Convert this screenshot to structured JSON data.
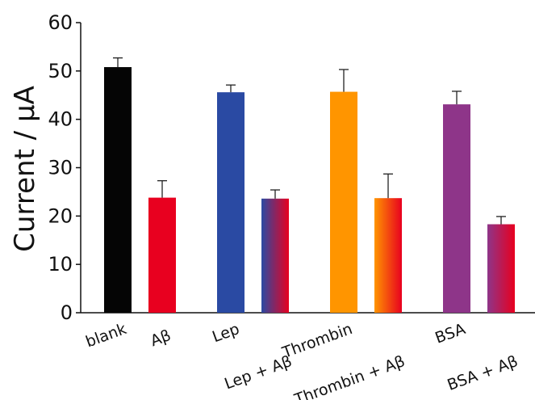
{
  "chart_data": {
    "type": "bar",
    "title": "",
    "xlabel": "",
    "ylabel": "Current / μA",
    "ylim": [
      0,
      60
    ],
    "yticks": [
      0,
      10,
      20,
      30,
      40,
      50,
      60
    ],
    "grid": false,
    "legend": "none",
    "categories": [
      "blank",
      "Aβ",
      "Lep",
      "Lep + Aβ",
      "Thrombin",
      "Thrombin  + Aβ",
      "BSA",
      "BSA + Aβ"
    ],
    "values": [
      50.8,
      23.8,
      45.6,
      23.6,
      45.7,
      23.7,
      43.1,
      18.3
    ],
    "errors": [
      1.9,
      3.5,
      1.5,
      1.8,
      4.6,
      5.0,
      2.7,
      1.6
    ],
    "colors": [
      [
        "#050505"
      ],
      [
        "#e8001f"
      ],
      [
        "#2a4aa3"
      ],
      [
        "#2a4aa3",
        "#e8001f"
      ],
      [
        "#ff9500"
      ],
      [
        "#ff9500",
        "#e8001f"
      ],
      [
        "#8e3589"
      ],
      [
        "#8e3589",
        "#e8001f"
      ]
    ]
  }
}
